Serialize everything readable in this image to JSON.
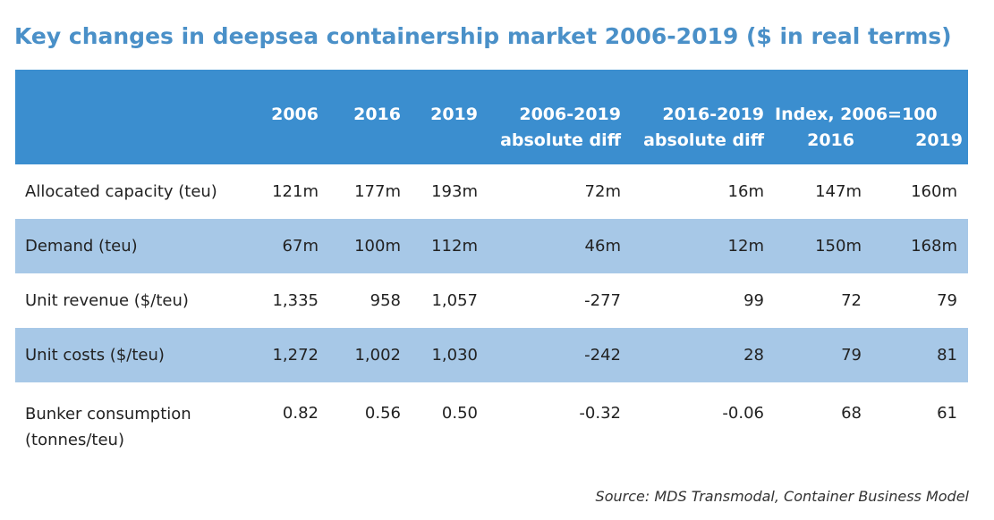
{
  "chart_data": {
    "type": "table",
    "title": "Key changes in deepsea containership market 2006-2019 ($ in real terms)",
    "columns": [
      "2006",
      "2016",
      "2019",
      "2006-2019 absolute diff",
      "2016-2019 absolute diff",
      "Index, 2006=100"
    ],
    "col_headers": {
      "c2006": "2006",
      "c2016": "2016",
      "c2019": "2019",
      "diff1_l1": "2006-2019",
      "diff1_l2": "absolute diff",
      "diff2_l1": "2016-2019",
      "diff2_l2": "absolute diff",
      "index_title": "Index, 2006=100",
      "index_2016": "2016",
      "index_2019": "2019"
    },
    "rows": [
      {
        "label": "Allocated capacity (teu)",
        "v2006": "121m",
        "v2016": "177m",
        "v2019": "193m",
        "diff_2006_2019": "72m",
        "diff_2016_2019": "16m",
        "index_2016": "147m",
        "index_2019": "160m"
      },
      {
        "label": "Demand (teu)",
        "v2006": "67m",
        "v2016": "100m",
        "v2019": "112m",
        "diff_2006_2019": "46m",
        "diff_2016_2019": "12m",
        "index_2016": "150m",
        "index_2019": "168m"
      },
      {
        "label": "Unit revenue ($/teu)",
        "v2006": "1,335",
        "v2016": "958",
        "v2019": "1,057",
        "diff_2006_2019": "-277",
        "diff_2016_2019": "99",
        "index_2016": "72",
        "index_2019": "79"
      },
      {
        "label": "Unit costs ($/teu)",
        "v2006": "1,272",
        "v2016": "1,002",
        "v2019": "1,030",
        "diff_2006_2019": "-242",
        "diff_2016_2019": "28",
        "index_2016": "79",
        "index_2019": "81"
      },
      {
        "label": "Bunker consumption (tonnes/teu)",
        "v2006": "0.82",
        "v2016": "0.56",
        "v2019": "0.50",
        "diff_2006_2019": "-0.32",
        "diff_2016_2019": "-0.06",
        "index_2016": "68",
        "index_2019": "61"
      }
    ],
    "source": "Source: MDS Transmodal, Container Business Model",
    "colors": {
      "title": "#4a90c8",
      "header_bg": "#3b8ecf",
      "row_shade": "#a7c8e7"
    }
  }
}
